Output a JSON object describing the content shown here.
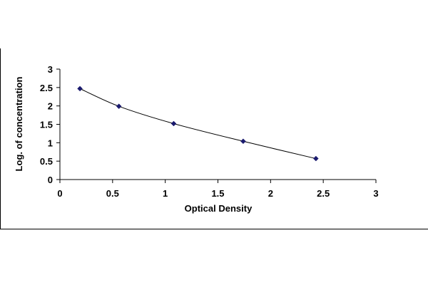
{
  "chart_data": {
    "type": "scatter",
    "title": "",
    "xlabel": "Optical Density",
    "ylabel": "Log. of concentration",
    "xlim": [
      0,
      3
    ],
    "ylim": [
      0,
      3
    ],
    "x_ticks": [
      "0",
      "0.5",
      "1",
      "1.5",
      "2",
      "2.5",
      "3"
    ],
    "y_ticks": [
      "0",
      "0.5",
      "1",
      "1.5",
      "2",
      "2.5",
      "3"
    ],
    "grid": false,
    "legend": "none",
    "trendline": "smooth curve",
    "marker_color": "#1a1a6e",
    "series": [
      {
        "x": [
          0.19,
          0.56,
          1.08,
          1.74,
          2.43
        ],
        "y": [
          2.47,
          1.99,
          1.52,
          1.04,
          0.57
        ]
      }
    ]
  }
}
